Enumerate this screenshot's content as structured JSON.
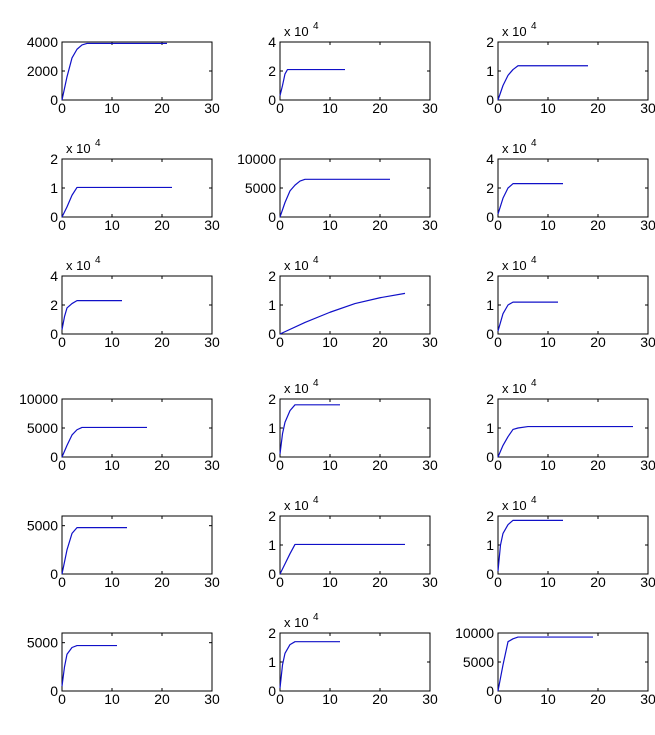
{
  "colors": {
    "series": "#1010c8",
    "axes": "#000000",
    "background": "#ffffff"
  },
  "chart_data": [
    {
      "type": "line",
      "xlim": [
        0,
        30
      ],
      "ylim": [
        0,
        4000
      ],
      "xticks": [
        "0",
        "10",
        "20",
        "30"
      ],
      "yticks": [
        "0",
        "2000",
        "4000"
      ],
      "exponent_label": "",
      "series": [
        {
          "x": [
            0,
            1,
            2,
            3,
            4,
            5,
            21
          ],
          "y": [
            0,
            1600,
            2900,
            3500,
            3800,
            3900,
            3900
          ]
        }
      ]
    },
    {
      "type": "line",
      "xlim": [
        0,
        30
      ],
      "ylim": [
        0,
        4
      ],
      "xticks": [
        "0",
        "10",
        "20",
        "30"
      ],
      "yticks": [
        "0",
        "2",
        "4"
      ],
      "exponent_label": "x 10",
      "series": [
        {
          "x": [
            0,
            0.5,
            1,
            1.5,
            13
          ],
          "y": [
            0.3,
            1.0,
            1.8,
            2.1,
            2.1
          ]
        }
      ]
    },
    {
      "type": "line",
      "xlim": [
        0,
        30
      ],
      "ylim": [
        0,
        2
      ],
      "xticks": [
        "0",
        "10",
        "20",
        "30"
      ],
      "yticks": [
        "0",
        "1",
        "2"
      ],
      "exponent_label": "x 10",
      "series": [
        {
          "x": [
            0,
            1,
            2,
            3,
            4,
            18
          ],
          "y": [
            0,
            0.5,
            0.85,
            1.05,
            1.18,
            1.18
          ]
        }
      ]
    },
    {
      "type": "line",
      "xlim": [
        0,
        30
      ],
      "ylim": [
        0,
        2
      ],
      "xticks": [
        "0",
        "10",
        "20",
        "30"
      ],
      "yticks": [
        "0",
        "1",
        "2"
      ],
      "exponent_label": "x 10",
      "series": [
        {
          "x": [
            0,
            1,
            2,
            3,
            22
          ],
          "y": [
            0,
            0.35,
            0.75,
            1.02,
            1.02
          ]
        }
      ]
    },
    {
      "type": "line",
      "xlim": [
        0,
        30
      ],
      "ylim": [
        0,
        10000
      ],
      "xticks": [
        "0",
        "10",
        "20",
        "30"
      ],
      "yticks": [
        "0",
        "5000",
        "10000"
      ],
      "exponent_label": "",
      "series": [
        {
          "x": [
            0,
            1,
            2,
            3,
            4,
            5,
            22
          ],
          "y": [
            0,
            2500,
            4500,
            5500,
            6200,
            6500,
            6500
          ]
        }
      ]
    },
    {
      "type": "line",
      "xlim": [
        0,
        30
      ],
      "ylim": [
        0,
        4
      ],
      "xticks": [
        "0",
        "10",
        "20",
        "30"
      ],
      "yticks": [
        "0",
        "2",
        "4"
      ],
      "exponent_label": "x 10",
      "series": [
        {
          "x": [
            0,
            1,
            2,
            3,
            13
          ],
          "y": [
            0.2,
            1.3,
            2.0,
            2.3,
            2.3
          ]
        }
      ]
    },
    {
      "type": "line",
      "xlim": [
        0,
        30
      ],
      "ylim": [
        0,
        4
      ],
      "xticks": [
        "0",
        "10",
        "20",
        "30"
      ],
      "yticks": [
        "0",
        "2",
        "4"
      ],
      "exponent_label": "x 10",
      "series": [
        {
          "x": [
            0,
            0.5,
            1,
            2,
            3,
            12
          ],
          "y": [
            0.3,
            1.2,
            1.8,
            2.1,
            2.3,
            2.3
          ]
        }
      ]
    },
    {
      "type": "line",
      "xlim": [
        0,
        30
      ],
      "ylim": [
        0,
        2
      ],
      "xticks": [
        "0",
        "10",
        "20",
        "30"
      ],
      "yticks": [
        "0",
        "1",
        "2"
      ],
      "exponent_label": "x 10",
      "series": [
        {
          "x": [
            0,
            5,
            10,
            15,
            20,
            25
          ],
          "y": [
            0,
            0.4,
            0.75,
            1.05,
            1.25,
            1.4
          ]
        }
      ]
    },
    {
      "type": "line",
      "xlim": [
        0,
        30
      ],
      "ylim": [
        0,
        2
      ],
      "xticks": [
        "0",
        "10",
        "20",
        "30"
      ],
      "yticks": [
        "0",
        "1",
        "2"
      ],
      "exponent_label": "x 10",
      "series": [
        {
          "x": [
            0,
            1,
            2,
            3,
            12
          ],
          "y": [
            0.1,
            0.7,
            1.0,
            1.1,
            1.1
          ]
        }
      ]
    },
    {
      "type": "line",
      "xlim": [
        0,
        30
      ],
      "ylim": [
        0,
        10000
      ],
      "xticks": [
        "0",
        "10",
        "20",
        "30"
      ],
      "yticks": [
        "0",
        "5000",
        "10000"
      ],
      "exponent_label": "",
      "series": [
        {
          "x": [
            0,
            1,
            2,
            3,
            4,
            17
          ],
          "y": [
            0,
            2000,
            3800,
            4700,
            5100,
            5100
          ]
        }
      ]
    },
    {
      "type": "line",
      "xlim": [
        0,
        30
      ],
      "ylim": [
        0,
        2
      ],
      "xticks": [
        "0",
        "10",
        "20",
        "30"
      ],
      "yticks": [
        "0",
        "1",
        "2"
      ],
      "exponent_label": "x 10",
      "series": [
        {
          "x": [
            0,
            0.5,
            1,
            2,
            3,
            12
          ],
          "y": [
            0.1,
            0.8,
            1.2,
            1.6,
            1.8,
            1.8
          ]
        }
      ]
    },
    {
      "type": "line",
      "xlim": [
        0,
        30
      ],
      "ylim": [
        0,
        2
      ],
      "xticks": [
        "0",
        "10",
        "20",
        "30"
      ],
      "yticks": [
        "0",
        "1",
        "2"
      ],
      "exponent_label": "x 10",
      "series": [
        {
          "x": [
            0,
            1,
            2,
            3,
            4,
            6,
            27
          ],
          "y": [
            0,
            0.4,
            0.7,
            0.95,
            1.0,
            1.05,
            1.05
          ]
        }
      ]
    },
    {
      "type": "line",
      "xlim": [
        0,
        30
      ],
      "ylim": [
        0,
        6000
      ],
      "xticks": [
        "0",
        "10",
        "20",
        "30"
      ],
      "yticks": [
        "0",
        "5000"
      ],
      "exponent_label": "",
      "series": [
        {
          "x": [
            0,
            1,
            2,
            3,
            13
          ],
          "y": [
            0,
            2500,
            4200,
            4800,
            4800
          ]
        }
      ]
    },
    {
      "type": "line",
      "xlim": [
        0,
        30
      ],
      "ylim": [
        0,
        2
      ],
      "xticks": [
        "0",
        "10",
        "20",
        "30"
      ],
      "yticks": [
        "0",
        "1",
        "2"
      ],
      "exponent_label": "x 10",
      "series": [
        {
          "x": [
            0,
            1,
            2,
            3,
            25
          ],
          "y": [
            0,
            0.35,
            0.7,
            1.02,
            1.02
          ]
        }
      ]
    },
    {
      "type": "line",
      "xlim": [
        0,
        30
      ],
      "ylim": [
        0,
        2
      ],
      "xticks": [
        "0",
        "10",
        "20",
        "30"
      ],
      "yticks": [
        "0",
        "1",
        "2"
      ],
      "exponent_label": "x 10",
      "series": [
        {
          "x": [
            0,
            0.5,
            1,
            2,
            3,
            13
          ],
          "y": [
            0.1,
            1.0,
            1.4,
            1.7,
            1.85,
            1.85
          ]
        }
      ]
    },
    {
      "type": "line",
      "xlim": [
        0,
        30
      ],
      "ylim": [
        0,
        6000
      ],
      "xticks": [
        "0",
        "10",
        "20",
        "30"
      ],
      "yticks": [
        "0",
        "5000"
      ],
      "exponent_label": "",
      "series": [
        {
          "x": [
            0,
            0.5,
            1,
            2,
            3,
            11
          ],
          "y": [
            500,
            2500,
            3800,
            4500,
            4700,
            4700
          ]
        }
      ]
    },
    {
      "type": "line",
      "xlim": [
        0,
        30
      ],
      "ylim": [
        0,
        2
      ],
      "xticks": [
        "0",
        "10",
        "20",
        "30"
      ],
      "yticks": [
        "0",
        "1",
        "2"
      ],
      "exponent_label": "x 10",
      "series": [
        {
          "x": [
            0,
            0.5,
            1,
            2,
            3,
            12
          ],
          "y": [
            0.1,
            0.9,
            1.3,
            1.6,
            1.7,
            1.7
          ]
        }
      ]
    },
    {
      "type": "line",
      "xlim": [
        0,
        30
      ],
      "ylim": [
        0,
        10000
      ],
      "xticks": [
        "0",
        "10",
        "20",
        "30"
      ],
      "yticks": [
        "0",
        "5000",
        "10000"
      ],
      "exponent_label": "",
      "series": [
        {
          "x": [
            0,
            1,
            2,
            3,
            4,
            19
          ],
          "y": [
            0,
            4500,
            8500,
            9000,
            9300,
            9300
          ]
        }
      ]
    }
  ]
}
